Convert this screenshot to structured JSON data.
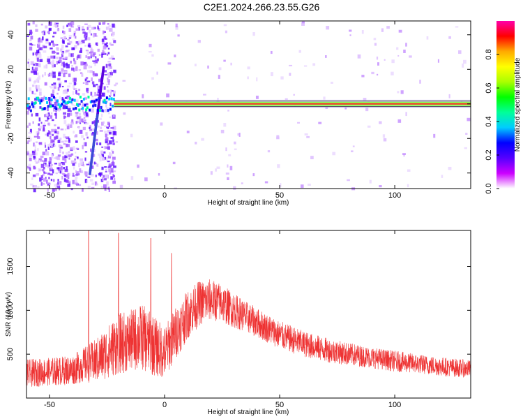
{
  "title": "C2E1.2024.266.23.55.G26",
  "chart_data": [
    {
      "type": "heatmap",
      "xlabel": "Height of straight line (km)",
      "ylabel": "Frequency (Hz)",
      "xlim": [
        -60,
        133
      ],
      "ylim": [
        -49,
        48
      ],
      "xticks": [
        -50,
        0,
        50,
        100
      ],
      "yticks": [
        -40,
        -20,
        0,
        20,
        40
      ],
      "colorbar": {
        "label": "Normalized spectral amplitude",
        "range": [
          0,
          1
        ],
        "ticks": [
          "0.0",
          "0.2",
          "0.4",
          "0.6",
          "0.8"
        ],
        "colors": [
          "#ffffff",
          "#cc00ff",
          "#5500ff",
          "#0000ff",
          "#00ccff",
          "#00ff99",
          "#00ff00",
          "#aaff00",
          "#ffff00",
          "#ffaa00",
          "#ff0000",
          "#ff00aa"
        ]
      },
      "features": {
        "carrier_line_hz": 0,
        "spike_near_km": -30,
        "spike_range_hz": [
          -40,
          22
        ]
      }
    },
    {
      "type": "line",
      "xlabel": "Height of straight line (km)",
      "ylabel": "SNR (10 * v/v)",
      "xlim": [
        -60,
        133
      ],
      "ylim": [
        0,
        1910
      ],
      "xticks": [
        -50,
        0,
        50,
        100
      ],
      "yticks": [
        500,
        1000,
        1500
      ],
      "color": "#ee3333",
      "envelope": {
        "x": [
          -60,
          -50,
          -40,
          -35,
          -30,
          -25,
          -20,
          -15,
          -10,
          -5,
          0,
          5,
          10,
          15,
          20,
          25,
          30,
          35,
          40,
          50,
          60,
          70,
          80,
          90,
          100,
          110,
          120,
          133
        ],
        "mean": [
          280,
          300,
          320,
          380,
          420,
          520,
          620,
          650,
          700,
          600,
          520,
          750,
          950,
          1080,
          1120,
          1080,
          1000,
          930,
          860,
          720,
          620,
          550,
          500,
          460,
          420,
          390,
          360,
          330
        ],
        "amp": [
          160,
          160,
          170,
          200,
          250,
          300,
          350,
          350,
          380,
          350,
          300,
          300,
          280,
          260,
          240,
          220,
          200,
          180,
          170,
          160,
          150,
          140,
          130,
          120,
          120,
          110,
          110,
          100
        ]
      },
      "peaks": [
        {
          "x": -33,
          "y": 1910
        },
        {
          "x": -20,
          "y": 1880
        },
        {
          "x": -6,
          "y": 1820
        },
        {
          "x": 3,
          "y": 1650
        }
      ]
    }
  ]
}
